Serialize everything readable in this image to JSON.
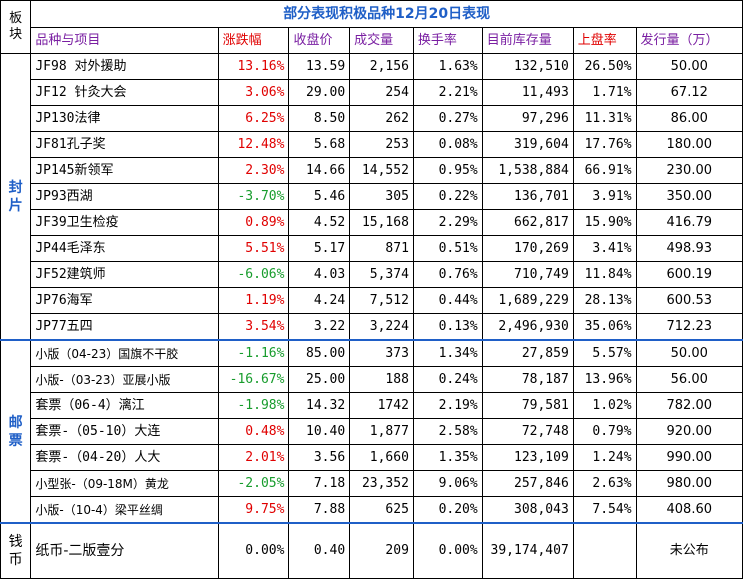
{
  "title": "部分表现积极品种12月20日表现",
  "header": {
    "bankuai": "板块",
    "name": "品种与项目",
    "change": "涨跌幅",
    "close": "收盘价",
    "volume": "成交量",
    "turnover": "换手率",
    "stock": "目前库存量",
    "listing_rate": "上盘率",
    "issue": "发行量（万）"
  },
  "groups": {
    "feng": "封片",
    "you": "邮票",
    "qian": "钱币"
  },
  "rows_feng": [
    {
      "name": "JF98 对外援助",
      "change": "13.16%",
      "dir": "up",
      "close": "13.59",
      "volume": "2,156",
      "turnover": "1.63%",
      "stock": "132,510",
      "listing": "26.50%",
      "issue": "50.00"
    },
    {
      "name": "JF12 针灸大会",
      "change": "3.06%",
      "dir": "up",
      "close": "29.00",
      "volume": "254",
      "turnover": "2.21%",
      "stock": "11,493",
      "listing": "1.71%",
      "issue": "67.12"
    },
    {
      "name": "JP130法律",
      "change": "6.25%",
      "dir": "up",
      "close": "8.50",
      "volume": "262",
      "turnover": "0.27%",
      "stock": "97,296",
      "listing": "11.31%",
      "issue": "86.00"
    },
    {
      "name": "JF81孔子奖",
      "change": "12.48%",
      "dir": "up",
      "close": "5.68",
      "volume": "253",
      "turnover": "0.08%",
      "stock": "319,604",
      "listing": "17.76%",
      "issue": "180.00"
    },
    {
      "name": "JP145新领军",
      "change": "2.30%",
      "dir": "up",
      "close": "14.66",
      "volume": "14,552",
      "turnover": "0.95%",
      "stock": "1,538,884",
      "listing": "66.91%",
      "issue": "230.00"
    },
    {
      "name": "JP93西湖",
      "change": "-3.70%",
      "dir": "down",
      "close": "5.46",
      "volume": "305",
      "turnover": "0.22%",
      "stock": "136,701",
      "listing": "3.91%",
      "issue": "350.00"
    },
    {
      "name": "JF39卫生检疫",
      "change": "0.89%",
      "dir": "up",
      "close": "4.52",
      "volume": "15,168",
      "turnover": "2.29%",
      "stock": "662,817",
      "listing": "15.90%",
      "issue": "416.79"
    },
    {
      "name": "JP44毛泽东",
      "change": "5.51%",
      "dir": "up",
      "close": "5.17",
      "volume": "871",
      "turnover": "0.51%",
      "stock": "170,269",
      "listing": "3.41%",
      "issue": "498.93"
    },
    {
      "name": "JF52建筑师",
      "change": "-6.06%",
      "dir": "down",
      "close": "4.03",
      "volume": "5,374",
      "turnover": "0.76%",
      "stock": "710,749",
      "listing": "11.84%",
      "issue": "600.19"
    },
    {
      "name": "JP76海军",
      "change": "1.19%",
      "dir": "up",
      "close": "4.24",
      "volume": "7,512",
      "turnover": "0.44%",
      "stock": "1,689,229",
      "listing": "28.13%",
      "issue": "600.53"
    },
    {
      "name": "JP77五四",
      "change": "3.54%",
      "dir": "up",
      "close": "3.22",
      "volume": "3,224",
      "turnover": "0.13%",
      "stock": "2,496,930",
      "listing": "35.06%",
      "issue": "712.23"
    }
  ],
  "rows_you": [
    {
      "name": "小版（04-23）国旗不干胶",
      "small": true,
      "change": "-1.16%",
      "dir": "down",
      "close": "85.00",
      "volume": "373",
      "turnover": "1.34%",
      "stock": "27,859",
      "listing": "5.57%",
      "issue": "50.00"
    },
    {
      "name": "小版-（03-23）亚展小版",
      "small": true,
      "change": "-16.67%",
      "dir": "down",
      "close": "25.00",
      "volume": "188",
      "turnover": "0.24%",
      "stock": "78,187",
      "listing": "13.96%",
      "issue": "56.00"
    },
    {
      "name": "套票（06-4）漓江",
      "small": false,
      "change": "-1.98%",
      "dir": "down",
      "close": "14.32",
      "volume": "1742",
      "turnover": "2.19%",
      "stock": "79,581",
      "listing": "1.02%",
      "issue": "782.00"
    },
    {
      "name": "套票-（05-10）大连",
      "small": false,
      "change": "0.48%",
      "dir": "up",
      "close": "10.40",
      "volume": "1,877",
      "turnover": "2.58%",
      "stock": "72,748",
      "listing": "0.79%",
      "issue": "920.00"
    },
    {
      "name": "套票-（04-20）人大",
      "small": false,
      "change": "2.01%",
      "dir": "up",
      "close": "3.56",
      "volume": "1,660",
      "turnover": "1.35%",
      "stock": "123,109",
      "listing": "1.24%",
      "issue": "990.00"
    },
    {
      "name": "小型张-（09-18M）黄龙",
      "small": true,
      "change": "-2.05%",
      "dir": "down",
      "close": "7.18",
      "volume": "23,352",
      "turnover": "9.06%",
      "stock": "257,846",
      "listing": "2.63%",
      "issue": "980.00"
    },
    {
      "name": "小版-（10-4）梁平丝绸",
      "small": true,
      "change": "9.75%",
      "dir": "up",
      "close": "7.88",
      "volume": "625",
      "turnover": "0.20%",
      "stock": "308,043",
      "listing": "7.54%",
      "issue": "408.60"
    }
  ],
  "row_qian": {
    "name": "纸币-二版壹分",
    "change": "0.00%",
    "dir": "zero",
    "close": "0.40",
    "volume": "209",
    "turnover": "0.00%",
    "stock": "39,174,407",
    "listing": "",
    "issue": "未公布"
  }
}
